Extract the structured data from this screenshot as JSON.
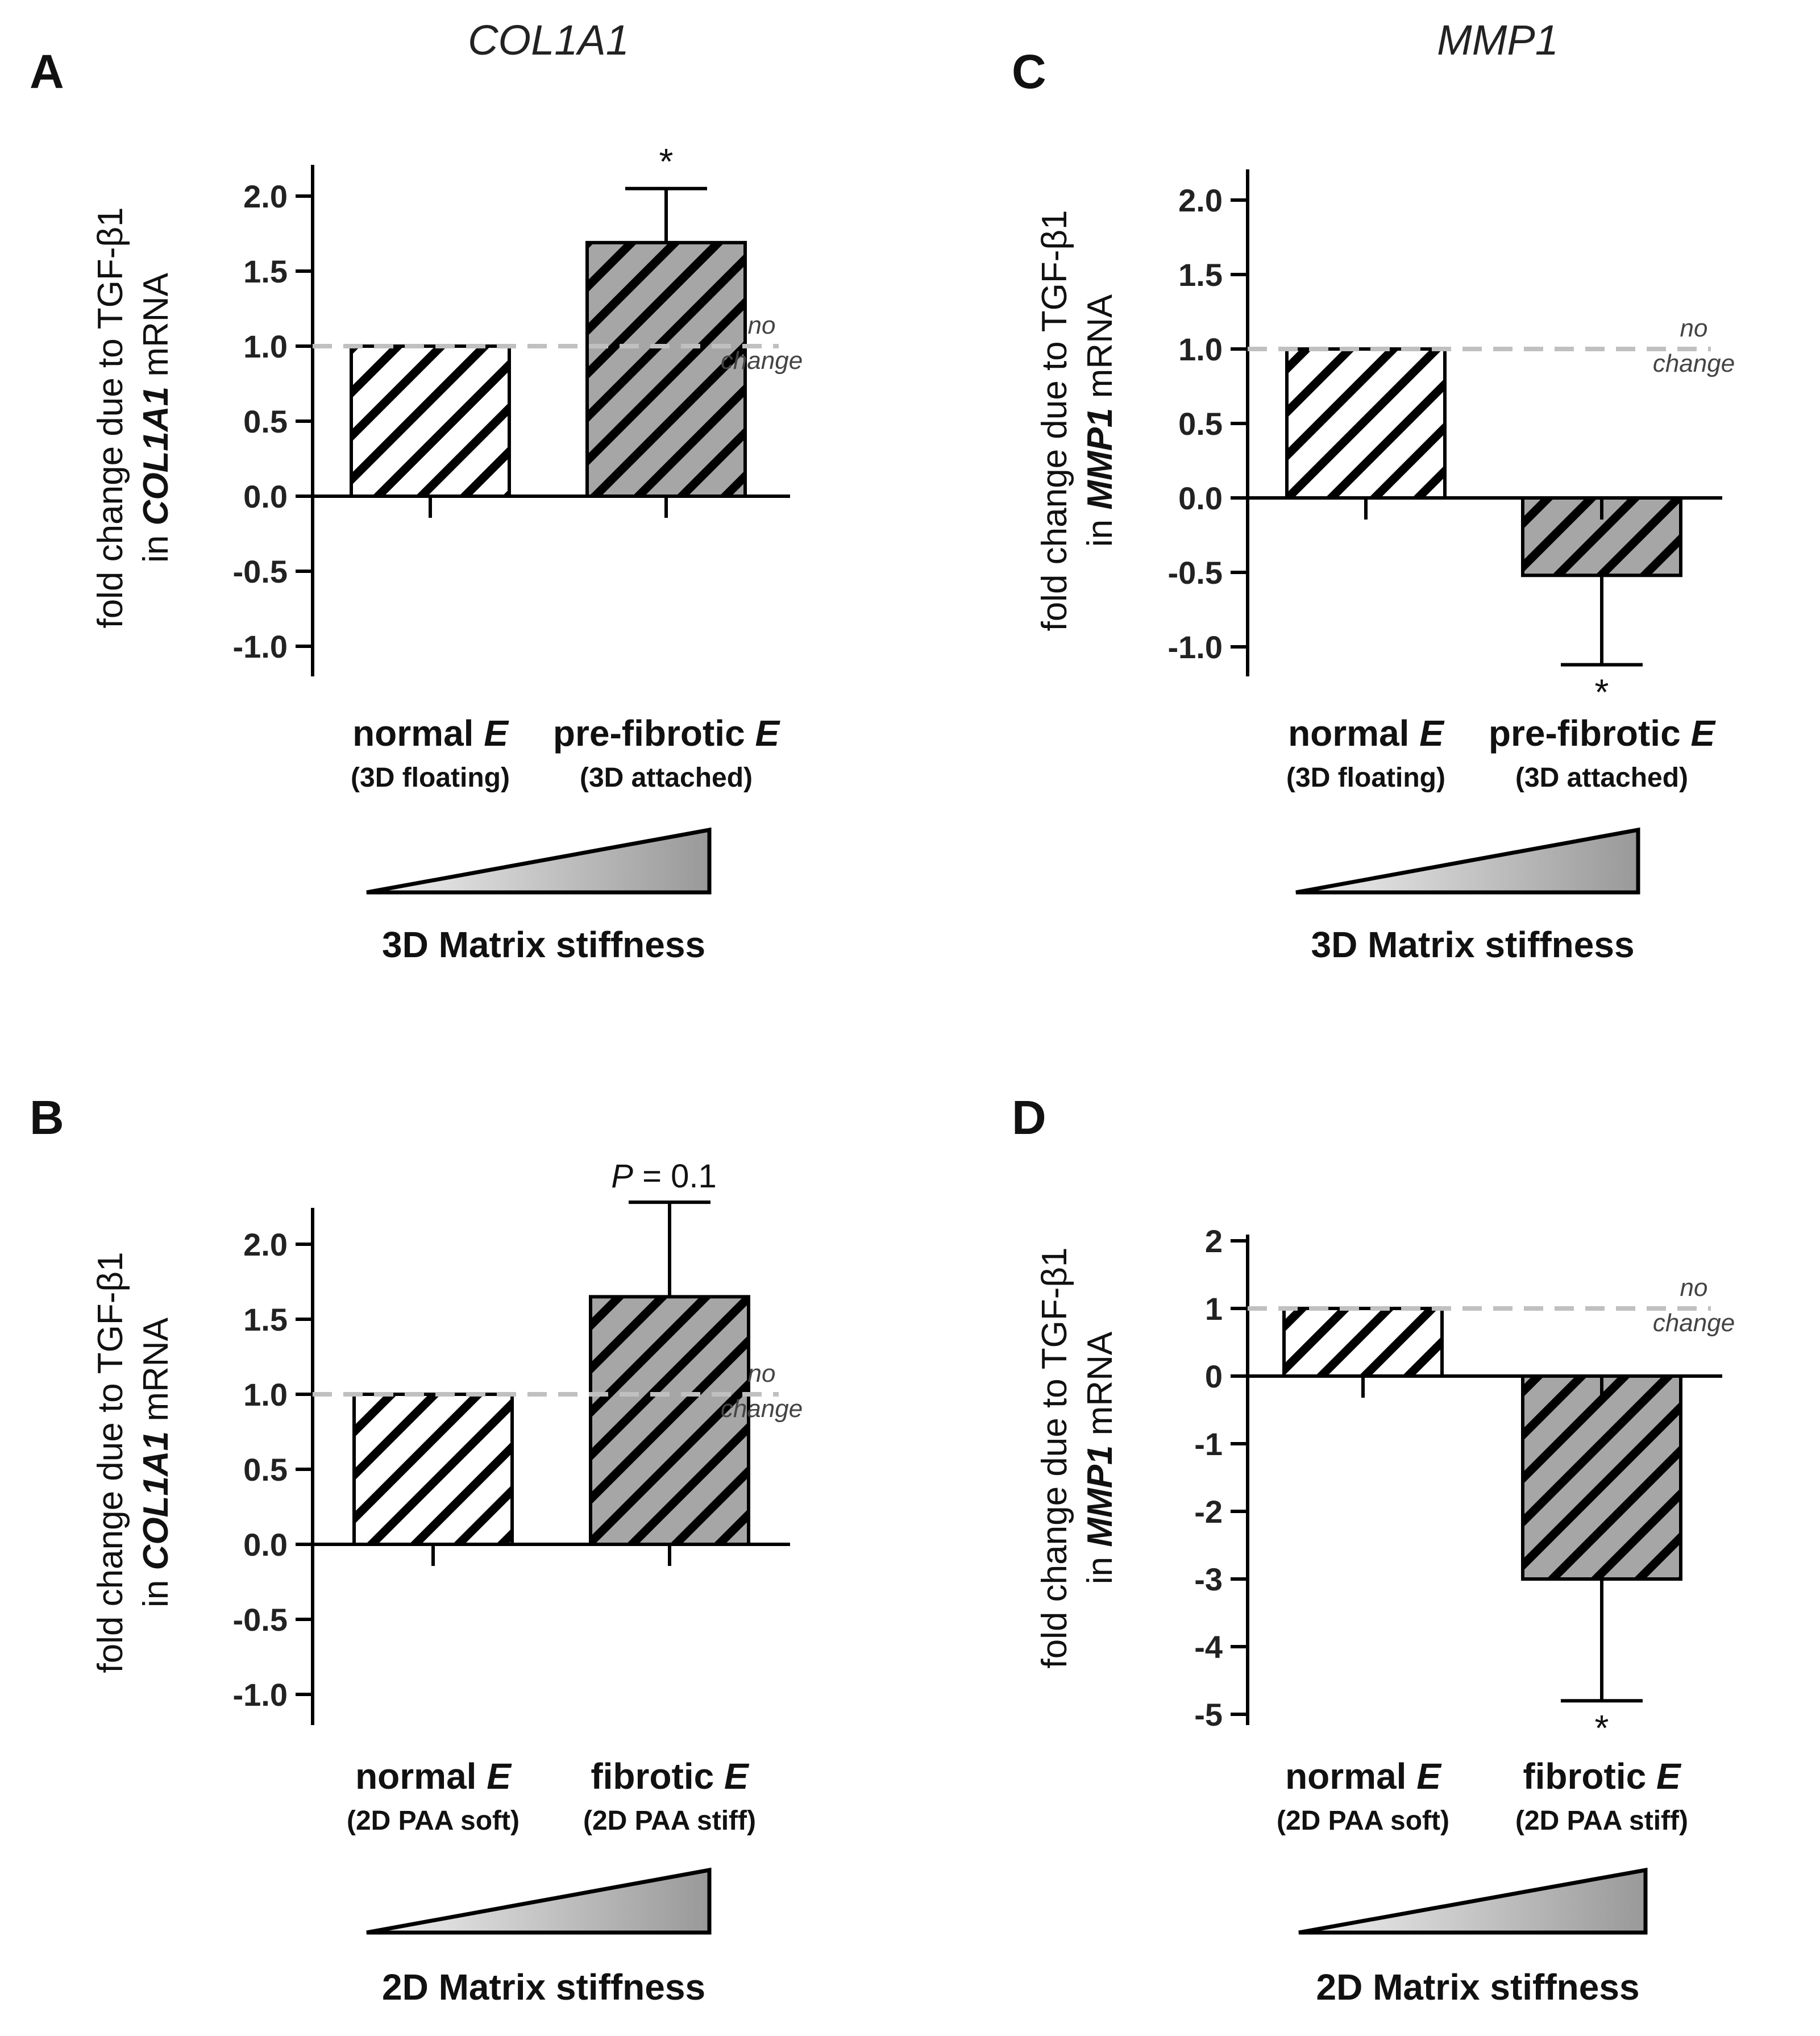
{
  "figure": {
    "column_titles": [
      "COL1A1",
      "MMP1"
    ],
    "no_change_label": [
      "no",
      "change"
    ],
    "colors": {
      "axis": "#000000",
      "dashed_reference": "#c0c0c0",
      "hatch_light_bar_fill": "#ffffff",
      "hatch_dark_bar_fill": "#a6a6a6",
      "stiffness_triangle_light": "#f2f2f2",
      "stiffness_triangle_dark": "#999999"
    }
  },
  "chart_data": [
    {
      "panel": "A",
      "type": "bar",
      "column_title": "COL1A1",
      "ylabel": [
        "fold change due to TGF-β1",
        "in ",
        "COL1A1",
        " mRNA"
      ],
      "ylim": [
        -1.2,
        2.2
      ],
      "yticks": [
        2.0,
        1.5,
        1.0,
        0.5,
        0.0,
        -0.5,
        -1.0
      ],
      "ytick_labels": [
        "2.0",
        "1.5",
        "1.0",
        "0.5",
        "0.0",
        "-0.5",
        "-1.0"
      ],
      "reference_line": 1.0,
      "categories": [
        {
          "label": "normal",
          "italic": "E",
          "sublabel": "(3D floating)"
        },
        {
          "label": "pre-fibrotic",
          "italic": "E",
          "sublabel": "(3D attached)"
        }
      ],
      "values": [
        1.0,
        1.69
      ],
      "errors": [
        0.0,
        0.36
      ],
      "annotations": [
        "",
        "*"
      ],
      "stiffness_label": "3D Matrix stiffness"
    },
    {
      "panel": "B",
      "type": "bar",
      "column_title": "COL1A1",
      "ylabel": [
        "fold change due to TGF-β1",
        "in ",
        "COL1A1",
        " mRNA"
      ],
      "ylim": [
        -1.2,
        2.2
      ],
      "yticks": [
        2.0,
        1.5,
        1.0,
        0.5,
        0.0,
        -0.5,
        -1.0
      ],
      "ytick_labels": [
        "2.0",
        "1.5",
        "1.0",
        "0.5",
        "0.0",
        "-0.5",
        "-1.0"
      ],
      "reference_line": 1.0,
      "categories": [
        {
          "label": "normal",
          "italic": "E",
          "sublabel": "(2D PAA soft)"
        },
        {
          "label": "fibrotic",
          "italic": "E",
          "sublabel": "(2D PAA stiff)"
        }
      ],
      "values": [
        1.0,
        1.65
      ],
      "errors": [
        0.0,
        0.63
      ],
      "annotations": [
        "",
        "P = 0.1"
      ],
      "stiffness_label": "2D Matrix stiffness"
    },
    {
      "panel": "C",
      "type": "bar",
      "column_title": "MMP1",
      "ylabel": [
        "fold change due to TGF-β1",
        "in ",
        "MMP1",
        " mRNA"
      ],
      "ylim": [
        -1.2,
        2.2
      ],
      "yticks": [
        2.0,
        1.5,
        1.0,
        0.5,
        0.0,
        -0.5,
        -1.0
      ],
      "ytick_labels": [
        "2.0",
        "1.5",
        "1.0",
        "0.5",
        "0.0",
        "-0.5",
        "-1.0"
      ],
      "reference_line": 1.0,
      "categories": [
        {
          "label": "normal",
          "italic": "E",
          "sublabel": "(3D floating)"
        },
        {
          "label": "pre-fibrotic",
          "italic": "E",
          "sublabel": "(3D attached)"
        }
      ],
      "values": [
        1.0,
        -0.52
      ],
      "errors": [
        0.0,
        0.6
      ],
      "annotations": [
        "",
        "*"
      ],
      "stiffness_label": "3D Matrix stiffness"
    },
    {
      "panel": "D",
      "type": "bar",
      "column_title": "MMP1",
      "ylabel": [
        "fold change due to TGF-β1",
        "in ",
        "MMP1",
        " mRNA"
      ],
      "ylim": [
        -5.2,
        2.2
      ],
      "yticks": [
        2,
        1,
        0,
        -1,
        -2,
        -3,
        -4,
        -5
      ],
      "ytick_labels": [
        "2",
        "1",
        "0",
        "-1",
        "-2",
        "-3",
        "-4",
        "-5"
      ],
      "reference_line": 1.0,
      "categories": [
        {
          "label": "normal",
          "italic": "E",
          "sublabel": "(2D PAA soft)"
        },
        {
          "label": "fibrotic",
          "italic": "E",
          "sublabel": "(2D PAA stiff)"
        }
      ],
      "values": [
        1.0,
        -3.0
      ],
      "errors": [
        0.0,
        1.8
      ],
      "annotations": [
        "",
        "*"
      ],
      "stiffness_label": "2D Matrix stiffness"
    }
  ]
}
